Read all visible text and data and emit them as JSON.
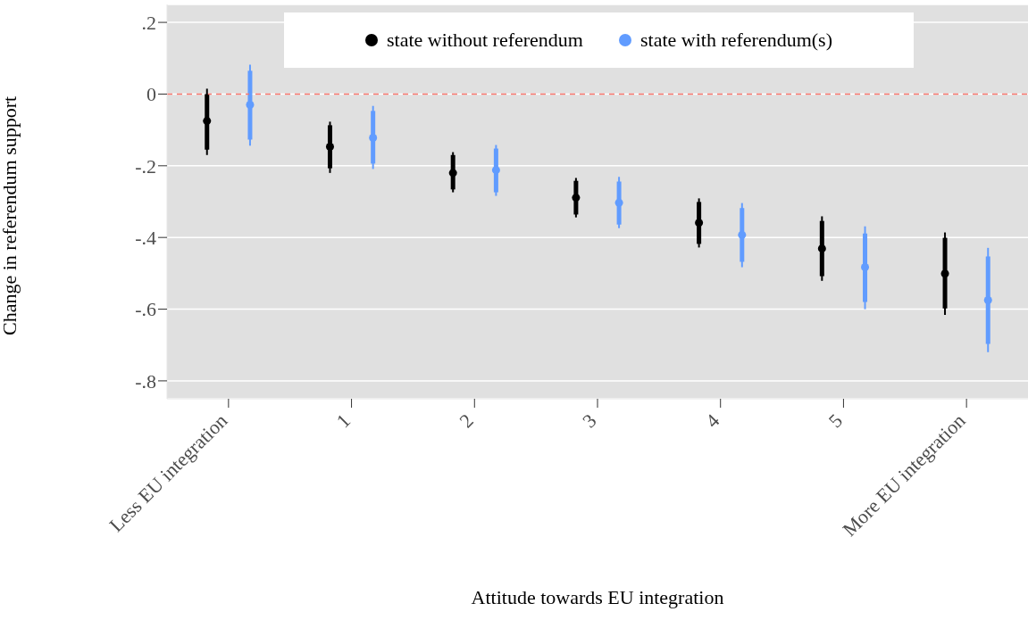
{
  "chart_data": {
    "type": "box",
    "xlabel": "Attitude towards EU integration",
    "ylabel": "Change in referendum support",
    "categories": [
      "Less EU integration",
      "1",
      "2",
      "3",
      "4",
      "5",
      "More EU integration"
    ],
    "series": [
      {
        "name": "state without referendum",
        "color": "#000000",
        "boxes": [
          {
            "low": -0.17,
            "q1": -0.155,
            "median": -0.075,
            "q3": 0.0,
            "high": 0.015
          },
          {
            "low": -0.22,
            "q1": -0.207,
            "median": -0.147,
            "q3": -0.087,
            "high": -0.077
          },
          {
            "low": -0.274,
            "q1": -0.266,
            "median": -0.22,
            "q3": -0.17,
            "high": -0.162
          },
          {
            "low": -0.344,
            "q1": -0.336,
            "median": -0.289,
            "q3": -0.242,
            "high": -0.234
          },
          {
            "low": -0.428,
            "q1": -0.418,
            "median": -0.359,
            "q3": -0.301,
            "high": -0.291
          },
          {
            "low": -0.521,
            "q1": -0.508,
            "median": -0.431,
            "q3": -0.354,
            "high": -0.341
          },
          {
            "low": -0.616,
            "q1": -0.598,
            "median": -0.501,
            "q3": -0.401,
            "high": -0.386
          }
        ]
      },
      {
        "name": "state with referendum(s)",
        "color": "#619cff",
        "boxes": [
          {
            "low": -0.144,
            "q1": -0.127,
            "median": -0.03,
            "q3": 0.065,
            "high": 0.082
          },
          {
            "low": -0.209,
            "q1": -0.194,
            "median": -0.122,
            "q3": -0.047,
            "high": -0.033
          },
          {
            "low": -0.284,
            "q1": -0.274,
            "median": -0.212,
            "q3": -0.152,
            "high": -0.142
          },
          {
            "low": -0.374,
            "q1": -0.364,
            "median": -0.303,
            "q3": -0.244,
            "high": -0.231
          },
          {
            "low": -0.483,
            "q1": -0.468,
            "median": -0.393,
            "q3": -0.318,
            "high": -0.304
          },
          {
            "low": -0.6,
            "q1": -0.58,
            "median": -0.483,
            "q3": -0.389,
            "high": -0.369
          },
          {
            "low": -0.72,
            "q1": -0.697,
            "median": -0.575,
            "q3": -0.453,
            "high": -0.429
          }
        ]
      }
    ],
    "ylim": [
      -0.85,
      0.25
    ],
    "yticks": [
      {
        "value": 0.2,
        "label": ".2"
      },
      0,
      {
        "value": -0.2,
        "label": "-.2"
      },
      {
        "value": -0.4,
        "label": "-.4"
      },
      {
        "value": -0.6,
        "label": "-.6"
      },
      {
        "value": -0.8,
        "label": "-.8"
      }
    ],
    "ref_lines": [
      {
        "axis": "y",
        "value": 0,
        "color": "#f8766d",
        "line_style": "dashed"
      }
    ],
    "grid": "y",
    "legend": "top",
    "marker": "circle"
  }
}
